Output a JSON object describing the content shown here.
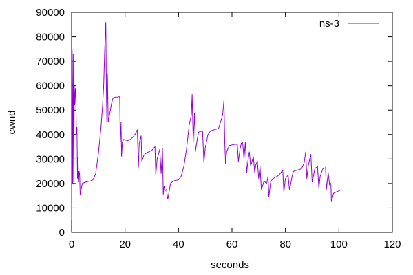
{
  "chart_data": {
    "type": "line",
    "xlabel": "seconds",
    "ylabel": "cwnd",
    "xlim": [
      0,
      120
    ],
    "ylim": [
      0,
      90000
    ],
    "x_ticks": [
      "0",
      "20",
      "40",
      "60",
      "80",
      "100",
      "120"
    ],
    "y_ticks": [
      "0",
      "10000",
      "20000",
      "30000",
      "40000",
      "50000",
      "60000",
      "70000",
      "80000",
      "90000"
    ],
    "grid": false,
    "legend_position": "top-right",
    "series": [
      {
        "name": "ns-3",
        "color": "#9400d3",
        "points": [
          [
            0,
            5000
          ],
          [
            0.2,
            74500
          ],
          [
            0.4,
            20000
          ],
          [
            0.6,
            73000
          ],
          [
            0.8,
            20500
          ],
          [
            1.0,
            60000
          ],
          [
            1.2,
            52000
          ],
          [
            1.4,
            59000
          ],
          [
            1.6,
            55000
          ],
          [
            1.8,
            40000
          ],
          [
            2.0,
            43000
          ],
          [
            2.2,
            22000
          ],
          [
            2.4,
            31000
          ],
          [
            2.6,
            20500
          ],
          [
            2.8,
            25000
          ],
          [
            3.0,
            24000
          ],
          [
            3.2,
            15500
          ],
          [
            4.0,
            20000
          ],
          [
            5.0,
            20500
          ],
          [
            7.0,
            21000
          ],
          [
            8.0,
            21500
          ],
          [
            9.0,
            24000
          ],
          [
            10.0,
            32000
          ],
          [
            11.0,
            43000
          ],
          [
            11.6,
            52000
          ],
          [
            12.0,
            60000
          ],
          [
            12.4,
            75000
          ],
          [
            12.8,
            86000
          ],
          [
            13.0,
            60000
          ],
          [
            13.2,
            45000
          ],
          [
            13.4,
            65000
          ],
          [
            13.7,
            45000
          ],
          [
            14.0,
            47000
          ],
          [
            15.0,
            53000
          ],
          [
            15.5,
            55000
          ],
          [
            16.0,
            55200
          ],
          [
            18.0,
            55500
          ],
          [
            18.2,
            37000
          ],
          [
            18.5,
            45000
          ],
          [
            18.7,
            31000
          ],
          [
            19.0,
            37000
          ],
          [
            19.5,
            38000
          ],
          [
            21.0,
            37500
          ],
          [
            22.0,
            38000
          ],
          [
            23.0,
            39000
          ],
          [
            24.0,
            40500
          ],
          [
            24.6,
            42000
          ],
          [
            25.0,
            26500
          ],
          [
            25.3,
            36500
          ],
          [
            26.0,
            39500
          ],
          [
            26.3,
            29000
          ],
          [
            27.0,
            31500
          ],
          [
            28.0,
            32500
          ],
          [
            30.0,
            33500
          ],
          [
            31.2,
            35000
          ],
          [
            31.5,
            23500
          ],
          [
            32.0,
            30000
          ],
          [
            33.0,
            34000
          ],
          [
            33.5,
            24000
          ],
          [
            34.0,
            34500
          ],
          [
            34.3,
            15500
          ],
          [
            34.6,
            19000
          ],
          [
            35.0,
            17000
          ],
          [
            35.5,
            17500
          ],
          [
            36.0,
            13500
          ],
          [
            37.0,
            20000
          ],
          [
            38.0,
            21000
          ],
          [
            40.0,
            21500
          ],
          [
            41.0,
            23000
          ],
          [
            42.0,
            27000
          ],
          [
            43.0,
            34000
          ],
          [
            44.0,
            44000
          ],
          [
            44.8,
            48000
          ],
          [
            45.1,
            56500
          ],
          [
            45.5,
            37000
          ],
          [
            46.0,
            49000
          ],
          [
            46.3,
            33000
          ],
          [
            47.0,
            38000
          ],
          [
            47.5,
            41000
          ],
          [
            49.0,
            41500
          ],
          [
            49.5,
            28500
          ],
          [
            50.0,
            34500
          ],
          [
            51.0,
            40000
          ],
          [
            52.0,
            41500
          ],
          [
            55.0,
            42500
          ],
          [
            56.5,
            48000
          ],
          [
            57.0,
            54000
          ],
          [
            57.3,
            37000
          ],
          [
            57.6,
            28000
          ],
          [
            58.0,
            33000
          ],
          [
            59.0,
            35500
          ],
          [
            61.0,
            36000
          ],
          [
            62.0,
            36000
          ],
          [
            62.4,
            29000
          ],
          [
            63.0,
            34000
          ],
          [
            63.5,
            36500
          ],
          [
            64.0,
            36700
          ],
          [
            64.5,
            30000
          ],
          [
            65.0,
            36800
          ],
          [
            65.5,
            24500
          ],
          [
            66.0,
            29500
          ],
          [
            66.5,
            33000
          ],
          [
            67.0,
            27000
          ],
          [
            68.0,
            31000
          ],
          [
            68.5,
            24500
          ],
          [
            69.0,
            28000
          ],
          [
            69.5,
            29000
          ],
          [
            70.0,
            22000
          ],
          [
            70.5,
            27000
          ],
          [
            71.0,
            17500
          ],
          [
            72.0,
            21000
          ],
          [
            73.0,
            20000
          ],
          [
            73.5,
            23000
          ],
          [
            73.8,
            14500
          ],
          [
            74.5,
            21000
          ],
          [
            76.0,
            22500
          ],
          [
            77.0,
            23000
          ],
          [
            78.0,
            24000
          ],
          [
            79.0,
            25500
          ],
          [
            79.4,
            16500
          ],
          [
            80.0,
            22000
          ],
          [
            81.0,
            23500
          ],
          [
            81.5,
            17500
          ],
          [
            82.0,
            20000
          ],
          [
            82.5,
            23000
          ],
          [
            83.0,
            25000
          ],
          [
            86.0,
            26000
          ],
          [
            87.0,
            28500
          ],
          [
            87.6,
            33000
          ],
          [
            88.0,
            22000
          ],
          [
            88.5,
            27000
          ],
          [
            89.5,
            32000
          ],
          [
            90.0,
            20500
          ],
          [
            91.0,
            26000
          ],
          [
            92.0,
            27000
          ],
          [
            92.5,
            18000
          ],
          [
            93.0,
            23000
          ],
          [
            94.0,
            26000
          ],
          [
            95.0,
            26500
          ],
          [
            95.3,
            17500
          ],
          [
            96.0,
            24500
          ],
          [
            96.5,
            19500
          ],
          [
            97.0,
            20000
          ],
          [
            97.2,
            12500
          ],
          [
            98.0,
            16000
          ],
          [
            99.0,
            16500
          ],
          [
            100.0,
            17000
          ],
          [
            101.0,
            17500
          ]
        ]
      }
    ]
  }
}
